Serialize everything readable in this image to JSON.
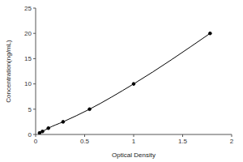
{
  "chart_data": {
    "type": "line",
    "x_label": "Optical Density",
    "y_label": "Concentration(ng/mL)",
    "x": [
      0.04,
      0.07,
      0.13,
      0.28,
      0.55,
      1.0,
      1.78
    ],
    "values": [
      0.3,
      0.6,
      1.25,
      2.5,
      5,
      10,
      20
    ],
    "color": "#000000",
    "marker": "circle",
    "line_style": "solid",
    "xlim": [
      0,
      2
    ],
    "xticks": [
      0,
      0.5,
      1,
      1.5,
      2
    ],
    "ylim": [
      0,
      25
    ],
    "yticks": [
      0,
      5,
      10,
      15,
      20,
      25
    ],
    "grid": false
  }
}
